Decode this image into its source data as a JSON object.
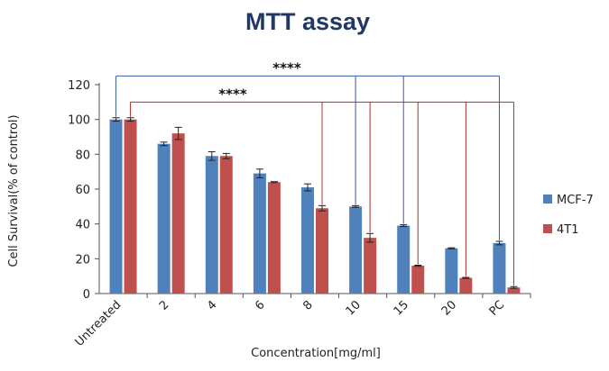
{
  "chart_data": {
    "type": "bar",
    "title": "MTT assay",
    "xlabel": "Concentration[mg/ml]",
    "ylabel": "Cell Survival(% of control)",
    "ylim": [
      0,
      120
    ],
    "yticks": [
      "0",
      "20",
      "40",
      "60",
      "80",
      "100",
      "120"
    ],
    "categories": [
      "Untreated",
      "2",
      "4",
      "6",
      "8",
      "10",
      "15",
      "20",
      "PC"
    ],
    "series": [
      {
        "name": "MCF-7",
        "color": "#4f81bd",
        "values": [
          100,
          86,
          79,
          69,
          61,
          50,
          39,
          26,
          29
        ],
        "errors": [
          1,
          1,
          2.5,
          2.5,
          2,
          0.5,
          0.5,
          0.3,
          1
        ]
      },
      {
        "name": "4T1",
        "color": "#c0504d",
        "values": [
          100,
          92,
          79,
          64,
          49,
          32,
          16,
          9,
          3.5
        ],
        "errors": [
          1,
          3.5,
          1.5,
          0.3,
          1.5,
          2.5,
          0.3,
          0.3,
          0.5
        ]
      }
    ],
    "significance": [
      {
        "label": "****",
        "series": "MCF-7",
        "color": "#3b58a8",
        "from": "Untreated",
        "to": [
          "10",
          "15",
          "PC"
        ],
        "level": 125
      },
      {
        "label": "****",
        "series": "4T1",
        "color": "#b0302c",
        "from": "Untreated",
        "to": [
          "8",
          "10",
          "15",
          "20",
          "PC"
        ],
        "level": 110
      }
    ],
    "legend_position": "right",
    "grid": false
  }
}
